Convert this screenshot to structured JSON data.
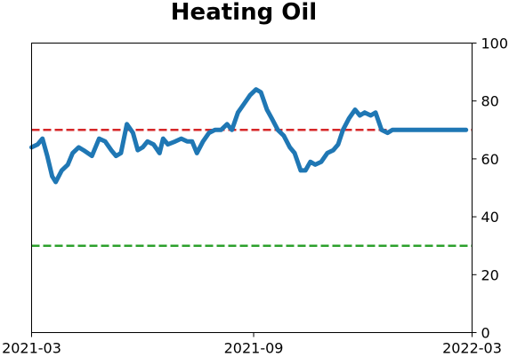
{
  "chart_data": {
    "type": "line",
    "title": "Heating Oil",
    "xlabel": "",
    "ylabel": "",
    "x_ticks": [
      "2021-03",
      "2021-09",
      "2022-03"
    ],
    "y_ticks": [
      "0",
      "20",
      "40",
      "60",
      "80",
      "100"
    ],
    "ylim": [
      0,
      100
    ],
    "y_axis_side": "right",
    "grid": false,
    "legend": "none",
    "reference_lines": [
      {
        "y": 70,
        "color": "#d62728",
        "style": "dashed"
      },
      {
        "y": 30,
        "color": "#2ca02c",
        "style": "dashed"
      }
    ],
    "series_color": "#1f77b4",
    "series": [
      {
        "x": [
          "2021-03-01",
          "2021-03-06",
          "2021-03-10",
          "2021-03-14",
          "2021-03-18",
          "2021-03-21",
          "2021-03-26",
          "2021-03-31",
          "2021-04-04",
          "2021-04-09",
          "2021-04-13",
          "2021-04-20",
          "2021-04-26",
          "2021-05-01",
          "2021-05-06",
          "2021-05-10",
          "2021-05-14",
          "2021-05-19",
          "2021-05-24",
          "2021-05-28",
          "2021-06-01",
          "2021-06-05",
          "2021-06-10",
          "2021-06-15",
          "2021-06-18",
          "2021-06-22",
          "2021-06-28",
          "2021-07-03",
          "2021-07-08",
          "2021-07-12",
          "2021-07-16",
          "2021-07-21",
          "2021-07-26",
          "2021-07-31",
          "2021-08-05",
          "2021-08-10",
          "2021-08-14",
          "2021-08-19",
          "2021-08-24",
          "2021-08-29",
          "2021-09-03",
          "2021-09-07",
          "2021-09-12",
          "2021-09-16",
          "2021-09-21",
          "2021-09-26",
          "2021-10-01",
          "2021-10-05",
          "2021-10-10",
          "2021-10-14",
          "2021-10-18",
          "2021-10-22",
          "2021-10-27",
          "2021-11-01",
          "2021-11-06",
          "2021-11-10",
          "2021-11-14",
          "2021-11-19",
          "2021-11-24",
          "2021-11-28",
          "2021-12-02",
          "2021-12-07",
          "2021-12-11",
          "2021-12-16",
          "2021-12-21",
          "2021-12-25",
          "2021-12-30",
          "2022-01-04",
          "2022-01-09",
          "2022-01-13",
          "2022-01-18",
          "2022-01-22",
          "2022-01-27",
          "2022-02-01",
          "2022-02-05",
          "2022-02-10",
          "2022-02-14",
          "2022-02-19",
          "2022-02-24"
        ],
        "values": [
          64,
          65,
          67,
          61,
          54,
          52,
          56,
          58,
          62,
          64,
          63,
          61,
          67,
          66,
          63,
          61,
          62,
          72,
          69,
          63,
          64,
          66,
          65,
          62,
          67,
          65,
          66,
          67,
          66,
          66,
          62,
          66,
          69,
          70,
          70,
          72,
          70,
          76,
          79,
          82,
          84,
          83,
          77,
          74,
          70,
          68,
          64,
          62,
          56,
          56,
          59,
          58,
          59,
          62,
          63,
          65,
          70,
          74,
          77,
          75,
          76,
          75,
          76,
          70,
          69,
          70,
          70,
          70,
          70,
          70,
          70,
          70,
          70,
          70,
          70,
          70,
          70,
          70,
          70
        ]
      }
    ]
  }
}
